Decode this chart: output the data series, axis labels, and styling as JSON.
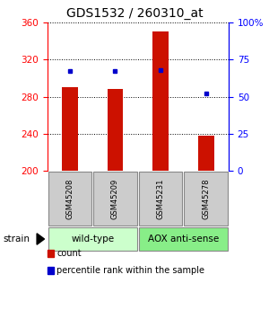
{
  "title": "GDS1532 / 260310_at",
  "samples": [
    "GSM45208",
    "GSM45209",
    "GSM45231",
    "GSM45278"
  ],
  "bar_values": [
    290,
    288,
    350,
    238
  ],
  "pct_values": [
    67,
    67,
    68,
    52
  ],
  "bar_color": "#cc1100",
  "dot_color": "#0000cc",
  "ylim_left": [
    200,
    360
  ],
  "ylim_right": [
    0,
    100
  ],
  "yticks_left": [
    200,
    240,
    280,
    320,
    360
  ],
  "yticks_right": [
    0,
    25,
    50,
    75,
    100
  ],
  "ytick_labels_right": [
    "0",
    "25",
    "50",
    "75",
    "100%"
  ],
  "group_boundaries": [
    [
      0,
      1,
      "wild-type",
      "#ccffcc"
    ],
    [
      2,
      3,
      "AOX anti-sense",
      "#88ee88"
    ]
  ],
  "strain_label": "strain",
  "legend_items": [
    {
      "label": "count",
      "color": "#cc1100",
      "marker": "s"
    },
    {
      "label": "percentile rank within the sample",
      "color": "#0000cc",
      "marker": "s"
    }
  ],
  "sample_box_color": "#cccccc",
  "bar_width": 0.35,
  "background_color": "#ffffff",
  "title_fontsize": 10,
  "tick_fontsize": 7.5,
  "sample_fontsize": 6,
  "group_fontsize": 7.5,
  "legend_fontsize": 7
}
